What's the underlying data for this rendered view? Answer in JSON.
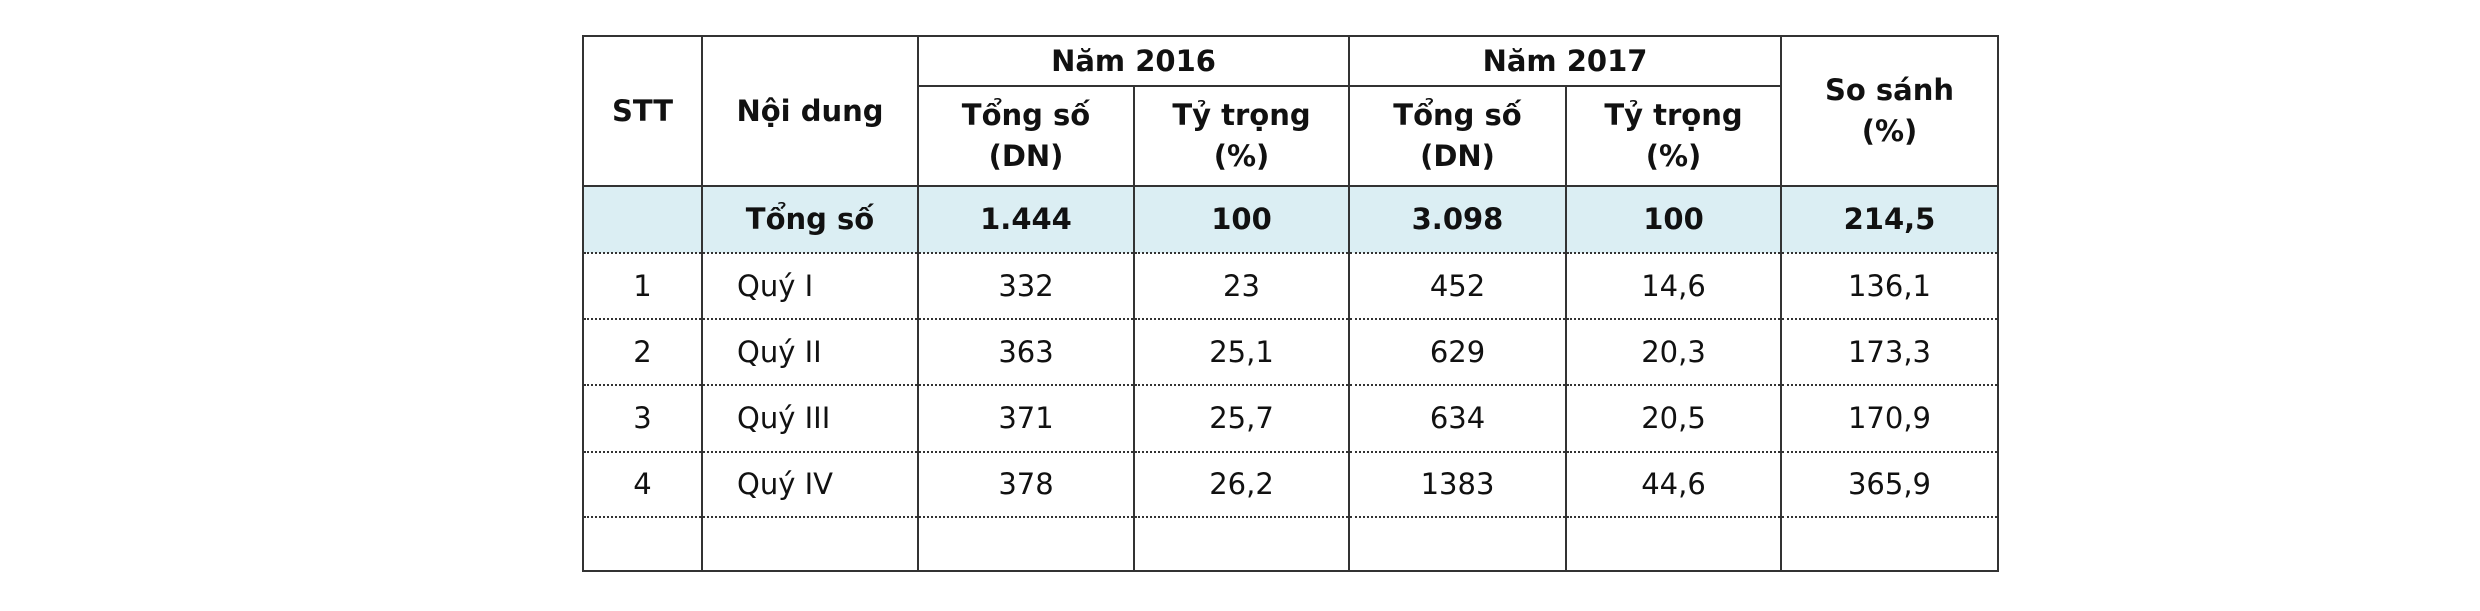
{
  "table": {
    "header": {
      "stt": "STT",
      "content": "Nội dung",
      "year_2016": "Năm 2016",
      "year_2017": "Năm 2017",
      "total_2016": "Tổng số\n(DN)",
      "share_2016": "Tỷ trọng\n(%)",
      "total_2017": "Tổng số\n(DN)",
      "share_2017": "Tỷ trọng\n(%)",
      "compare": "So sánh\n(%)"
    },
    "total_row": {
      "content": "Tổng số",
      "cells": [
        "1.444",
        "100",
        "3.098",
        "100",
        "214,5"
      ]
    },
    "rows": [
      {
        "stt": "1",
        "content": "Quý I",
        "cells": [
          "332",
          "23",
          "452",
          "14,6",
          "136,1"
        ]
      },
      {
        "stt": "2",
        "content": "Quý II",
        "cells": [
          "363",
          "25,1",
          "629",
          "20,3",
          "173,3"
        ]
      },
      {
        "stt": "3",
        "content": "Quý III",
        "cells": [
          "371",
          "25,7",
          "634",
          "20,5",
          "170,9"
        ]
      },
      {
        "stt": "4",
        "content": "Quý IV",
        "cells": [
          "378",
          "26,2",
          "1383",
          "44,6",
          "365,9"
        ]
      }
    ]
  }
}
